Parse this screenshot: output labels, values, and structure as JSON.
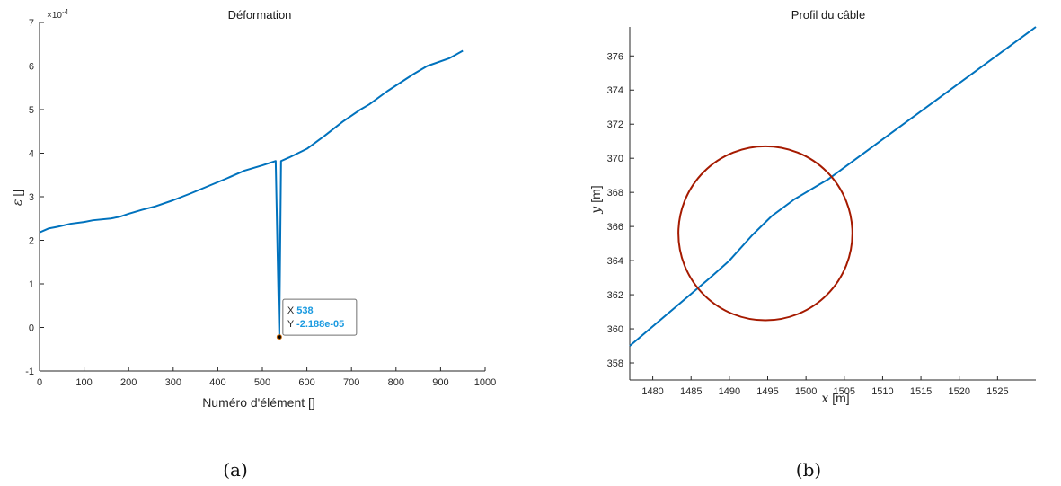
{
  "chart_data": [
    {
      "type": "line",
      "title": "Déformation",
      "xlabel": "Numéro d'élément []",
      "ylabel_symbol": "ε",
      "ylabel_unit": "[]",
      "y_exponent_label": "×10",
      "y_exponent_power": "-4",
      "xlim": [
        0,
        1000
      ],
      "ylim": [
        -1,
        7
      ],
      "y_scale_factor": 0.0001,
      "xticks": [
        "0",
        "100",
        "200",
        "300",
        "400",
        "500",
        "600",
        "700",
        "800",
        "900",
        "1000"
      ],
      "yticks": [
        "-1",
        "0",
        "1",
        "2",
        "3",
        "4",
        "5",
        "6",
        "7"
      ],
      "grid": false,
      "series": [
        {
          "color": "#0072bd",
          "x": [
            0,
            20,
            40,
            70,
            100,
            120,
            160,
            180,
            200,
            230,
            260,
            300,
            340,
            380,
            420,
            460,
            500,
            530,
            538,
            542,
            560,
            600,
            640,
            680,
            720,
            740,
            780,
            840,
            870,
            920,
            950
          ],
          "y": [
            2.18,
            2.27,
            2.31,
            2.38,
            2.42,
            2.46,
            2.5,
            2.54,
            2.61,
            2.7,
            2.78,
            2.92,
            3.08,
            3.25,
            3.42,
            3.6,
            3.72,
            3.82,
            -0.2188,
            3.82,
            3.9,
            4.1,
            4.4,
            4.72,
            5.0,
            5.12,
            5.42,
            5.82,
            6.0,
            6.18,
            6.35
          ]
        }
      ],
      "datatip": {
        "x_key": "X",
        "x_value": "538",
        "y_key": "Y",
        "y_value": "-2.188e-05",
        "point": [
          538,
          -0.2188
        ]
      },
      "caption": "(a)"
    },
    {
      "type": "line",
      "title": "Profil du câble",
      "xlabel_symbol": "x",
      "xlabel_unit": "[m]",
      "ylabel_symbol": "y",
      "ylabel_unit": "[m]",
      "xlim": [
        1477,
        1530
      ],
      "ylim": [
        357,
        377.7
      ],
      "xticks": [
        "1480",
        "1485",
        "1490",
        "1495",
        "1500",
        "1505",
        "1510",
        "1515",
        "1520",
        "1525"
      ],
      "yticks": [
        "358",
        "360",
        "362",
        "364",
        "366",
        "368",
        "370",
        "372",
        "374",
        "376"
      ],
      "grid": false,
      "series": [
        {
          "color": "#0072bd",
          "x": [
            1477,
            1487.5,
            1490,
            1493,
            1495.5,
            1498.5,
            1503,
            1530
          ],
          "y": [
            359.0,
            363.0,
            364.0,
            365.5,
            366.6,
            367.6,
            368.8,
            377.7
          ]
        }
      ],
      "circle": {
        "color": "#a51a00",
        "center": [
          1494.7,
          365.6
        ],
        "radius_y": 5.1
      },
      "caption": "(b)"
    }
  ]
}
